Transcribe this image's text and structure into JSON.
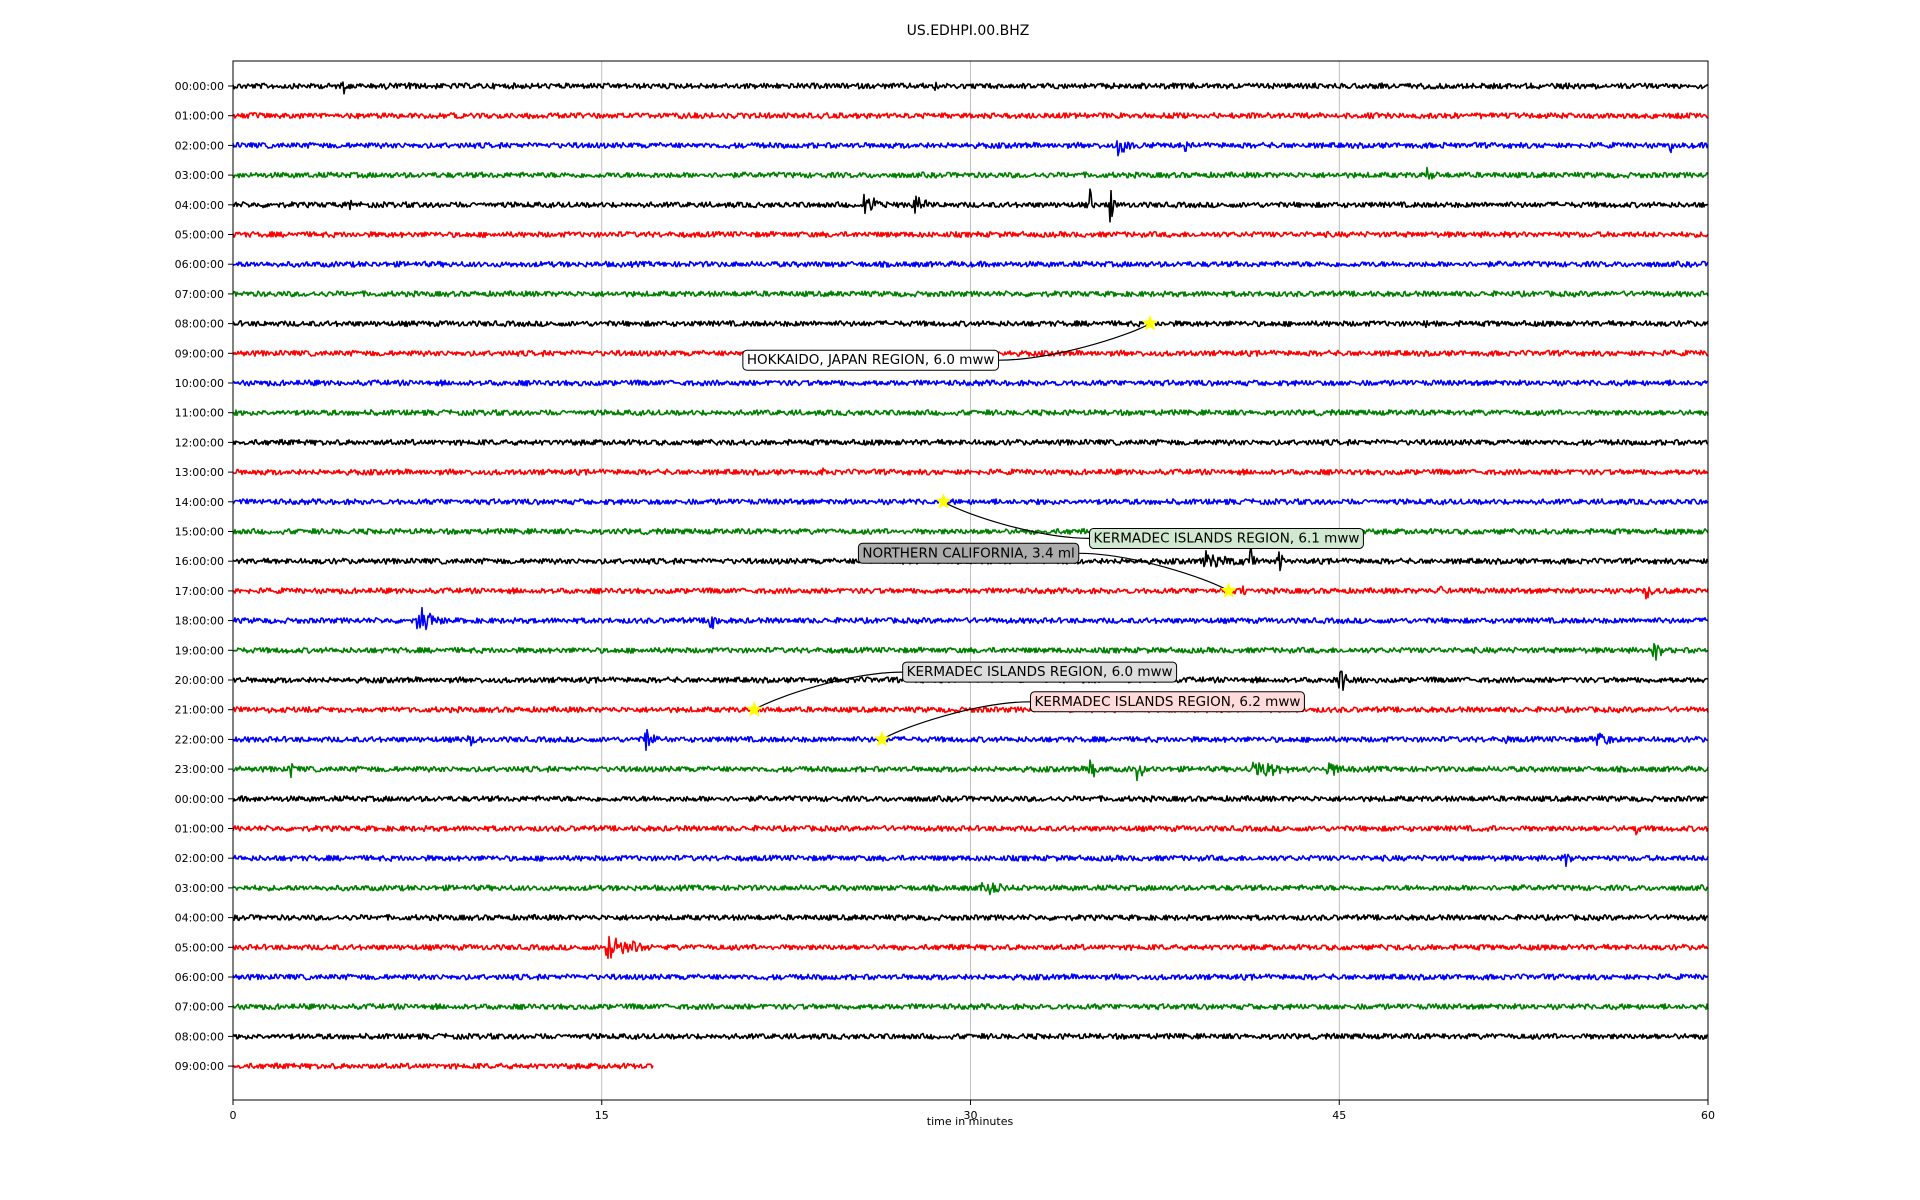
{
  "chart_data": {
    "type": "line",
    "title": "US.EDHPI.00.BHZ",
    "xlabel": "time in minutes",
    "ylabel": "",
    "xlim": [
      0,
      60
    ],
    "x_ticks": [
      "0",
      "15",
      "30",
      "45",
      "60"
    ],
    "x_tick_values": [
      0,
      15,
      30,
      45,
      60
    ],
    "grid": "vertical",
    "trace_colors": [
      "#000000",
      "#ff0000",
      "#0000ff",
      "#008000"
    ],
    "rows": [
      {
        "label": "00:00:00",
        "color": "#000000",
        "end": 60,
        "bursts": [
          [
            4.5,
            0.5,
            10
          ],
          [
            6.2,
            0.5,
            9
          ],
          [
            7.2,
            0.2,
            10
          ],
          [
            28.6,
            0.3,
            6
          ],
          [
            54.6,
            0.2,
            7
          ]
        ]
      },
      {
        "label": "01:00:00",
        "color": "#ff0000",
        "end": 60,
        "bursts": []
      },
      {
        "label": "02:00:00",
        "color": "#0000ff",
        "end": 60,
        "bursts": [
          [
            36,
            1.5,
            12
          ],
          [
            38.7,
            0.3,
            12
          ],
          [
            49.3,
            0.5,
            6
          ],
          [
            58.5,
            0.3,
            9
          ]
        ]
      },
      {
        "label": "03:00:00",
        "color": "#008000",
        "end": 60,
        "bursts": [
          [
            48.6,
            0.6,
            12
          ]
        ]
      },
      {
        "label": "04:00:00",
        "color": "#000000",
        "end": 60,
        "bursts": [
          [
            4.8,
            0.3,
            11
          ],
          [
            25.7,
            1.2,
            15
          ],
          [
            27.7,
            1,
            16
          ],
          [
            34.9,
            0.3,
            18
          ],
          [
            35.7,
            0.3,
            20
          ]
        ]
      },
      {
        "label": "05:00:00",
        "color": "#ff0000",
        "end": 60,
        "bursts": []
      },
      {
        "label": "06:00:00",
        "color": "#0000ff",
        "end": 60,
        "bursts": []
      },
      {
        "label": "07:00:00",
        "color": "#008000",
        "end": 60,
        "bursts": []
      },
      {
        "label": "08:00:00",
        "color": "#000000",
        "end": 60,
        "bursts": [
          [
            48.5,
            0.5,
            8
          ]
        ]
      },
      {
        "label": "09:00:00",
        "color": "#ff0000",
        "end": 60,
        "bursts": []
      },
      {
        "label": "10:00:00",
        "color": "#0000ff",
        "end": 60,
        "bursts": []
      },
      {
        "label": "11:00:00",
        "color": "#008000",
        "end": 60,
        "bursts": []
      },
      {
        "label": "12:00:00",
        "color": "#000000",
        "end": 60,
        "bursts": []
      },
      {
        "label": "13:00:00",
        "color": "#ff0000",
        "end": 60,
        "bursts": [
          [
            24,
            0.2,
            8
          ]
        ]
      },
      {
        "label": "14:00:00",
        "color": "#0000ff",
        "end": 60,
        "bursts": []
      },
      {
        "label": "15:00:00",
        "color": "#008000",
        "end": 60,
        "bursts": []
      },
      {
        "label": "16:00:00",
        "color": "#000000",
        "end": 60,
        "bursts": [
          [
            39.5,
            4,
            11
          ],
          [
            41.4,
            0.3,
            22
          ],
          [
            42.5,
            0.3,
            24
          ]
        ]
      },
      {
        "label": "17:00:00",
        "color": "#ff0000",
        "end": 60,
        "bursts": [
          [
            41,
            0.8,
            9
          ],
          [
            49.1,
            0.3,
            12
          ],
          [
            50.3,
            0.3,
            10
          ],
          [
            57.5,
            0.4,
            18
          ]
        ]
      },
      {
        "label": "18:00:00",
        "color": "#0000ff",
        "end": 60,
        "bursts": [
          [
            7.5,
            1.6,
            18
          ],
          [
            19.4,
            0.5,
            22
          ]
        ]
      },
      {
        "label": "19:00:00",
        "color": "#008000",
        "end": 60,
        "bursts": [
          [
            57.8,
            0.8,
            14
          ]
        ]
      },
      {
        "label": "20:00:00",
        "color": "#000000",
        "end": 60,
        "bursts": [
          [
            45,
            1.5,
            16
          ]
        ]
      },
      {
        "label": "21:00:00",
        "color": "#ff0000",
        "end": 60,
        "bursts": [
          [
            1.5,
            6,
            4
          ]
        ]
      },
      {
        "label": "22:00:00",
        "color": "#0000ff",
        "end": 60,
        "bursts": [
          [
            9.5,
            1,
            12
          ],
          [
            16.8,
            1,
            14
          ],
          [
            51.8,
            0.3,
            8
          ],
          [
            55.5,
            1,
            16
          ]
        ]
      },
      {
        "label": "23:00:00",
        "color": "#008000",
        "end": 60,
        "bursts": [
          [
            2.4,
            0.2,
            10
          ],
          [
            34.8,
            0.8,
            16
          ],
          [
            36.8,
            0.7,
            14
          ],
          [
            41.5,
            2.5,
            16
          ],
          [
            44.5,
            1.2,
            12
          ]
        ]
      },
      {
        "label": "00:00:00",
        "color": "#000000",
        "end": 60,
        "bursts": []
      },
      {
        "label": "01:00:00",
        "color": "#ff0000",
        "end": 60,
        "bursts": [
          [
            50.8,
            0.3,
            10
          ],
          [
            57.1,
            0.3,
            9
          ]
        ]
      },
      {
        "label": "02:00:00",
        "color": "#0000ff",
        "end": 60,
        "bursts": [
          [
            54.2,
            0.6,
            10
          ]
        ]
      },
      {
        "label": "03:00:00",
        "color": "#008000",
        "end": 60,
        "bursts": [
          [
            30.5,
            2,
            10
          ]
        ]
      },
      {
        "label": "04:00:00",
        "color": "#000000",
        "end": 60,
        "bursts": []
      },
      {
        "label": "05:00:00",
        "color": "#ff0000",
        "end": 60,
        "bursts": [
          [
            15.2,
            2.5,
            18
          ],
          [
            47,
            0.3,
            6
          ]
        ]
      },
      {
        "label": "06:00:00",
        "color": "#0000ff",
        "end": 60,
        "bursts": []
      },
      {
        "label": "07:00:00",
        "color": "#008000",
        "end": 60,
        "bursts": []
      },
      {
        "label": "08:00:00",
        "color": "#000000",
        "end": 60,
        "bursts": []
      },
      {
        "label": "09:00:00",
        "color": "#ff0000",
        "end": 17.1,
        "bursts": []
      }
    ],
    "events": [
      {
        "label": "HOKKAIDO, JAPAN REGION, 6.0 mww",
        "row": 8,
        "x": 37.3,
        "box_color": "#ffffff",
        "label_row": 9.2,
        "label_x": 20.7
      },
      {
        "label": "KERMADEC ISLANDS REGION, 6.1 mww",
        "row": 14,
        "x": 28.9,
        "box_color": "#cfe8cf",
        "label_row": 15.2,
        "label_x": 34.8
      },
      {
        "label": "NORTHERN CALIFORNIA, 3.4 ml",
        "row": 17,
        "x": 40.5,
        "box_color": "#ababab",
        "label_row": 15.7,
        "label_x": 25.4
      },
      {
        "label": "KERMADEC ISLANDS REGION, 6.0 mww",
        "row": 21,
        "x": 21.2,
        "box_color": "#dcdcdc",
        "label_row": 19.7,
        "label_x": 27.2
      },
      {
        "label": "KERMADEC ISLANDS REGION, 6.2 mww",
        "row": 22,
        "x": 26.4,
        "box_color": "#ffdada",
        "label_row": 20.7,
        "label_x": 32.4
      }
    ]
  }
}
